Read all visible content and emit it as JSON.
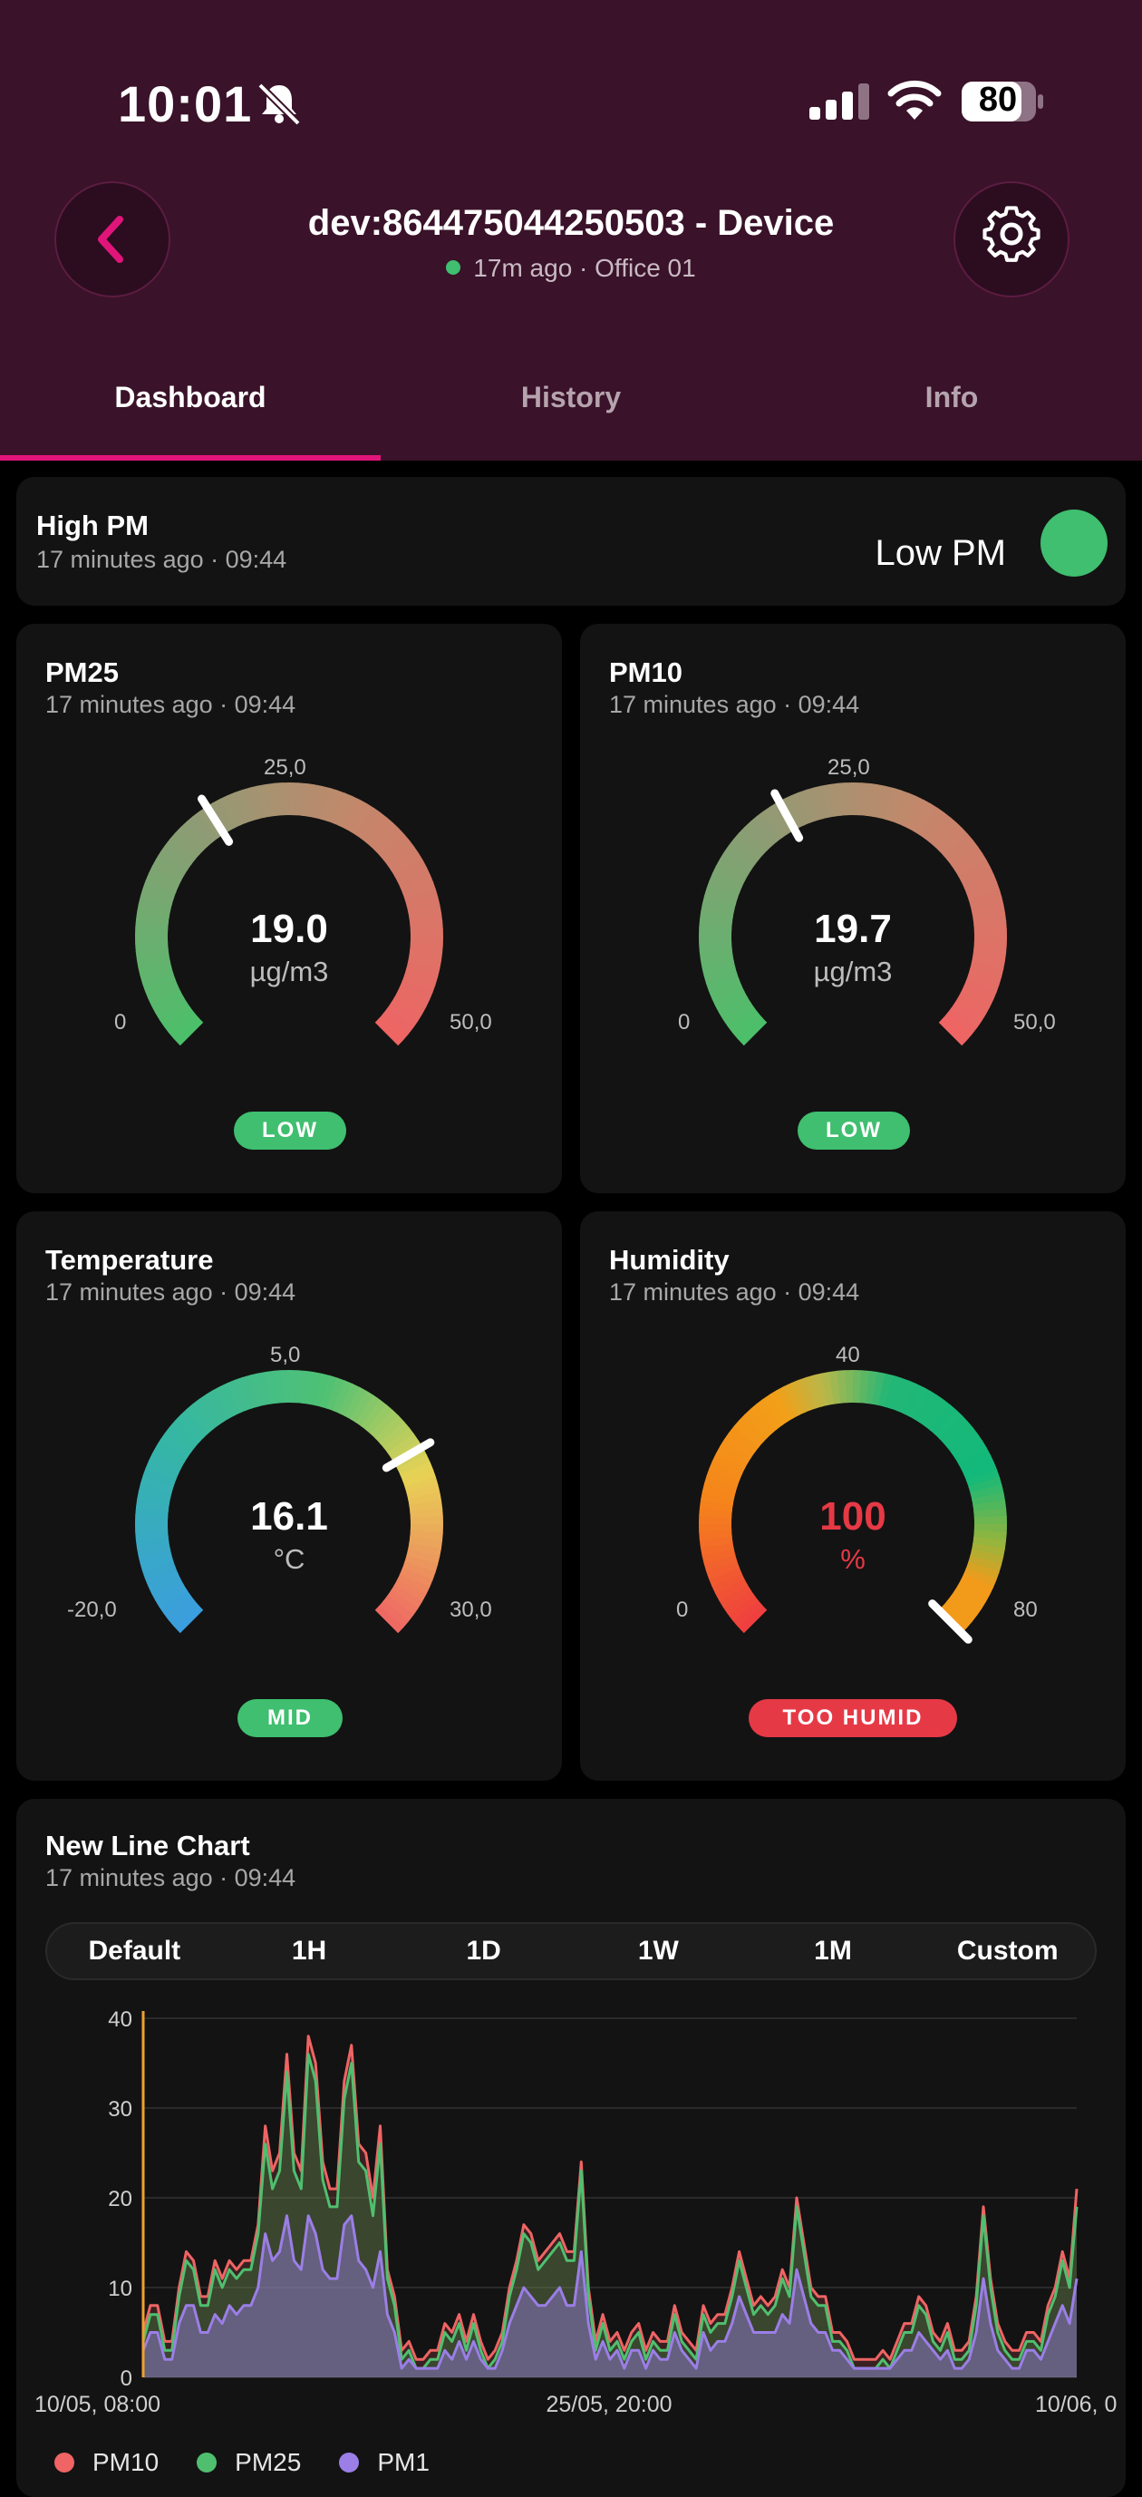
{
  "status_bar": {
    "time": "10:01",
    "battery": "80"
  },
  "header": {
    "device_title": "dev:864475044250503  - Device",
    "subtitle": "17m ago · Office 01"
  },
  "tabs": [
    {
      "label": "Dashboard",
      "active": true
    },
    {
      "label": "History",
      "active": false
    },
    {
      "label": "Info",
      "active": false
    }
  ],
  "alert_card": {
    "title": "High PM",
    "time": "17 minutes ago · 09:44",
    "state_label": "Low PM",
    "state_color": "#3fbf6f"
  },
  "gauges": [
    {
      "title": "PM25",
      "time": "17 minutes ago · 09:44",
      "value": "19.0",
      "unit": "µg/m3",
      "min_label": "0",
      "mid_label": "25,0",
      "max_label": "50,0",
      "fraction": 0.38,
      "status": "LOW",
      "status_color": "#3fbf6f",
      "value_color": "#ffffff"
    },
    {
      "title": "PM10",
      "time": "17 minutes ago · 09:44",
      "value": "19.7",
      "unit": "µg/m3",
      "min_label": "0",
      "mid_label": "25,0",
      "max_label": "50,0",
      "fraction": 0.394,
      "status": "LOW",
      "status_color": "#3fbf6f",
      "value_color": "#ffffff"
    },
    {
      "title": "Temperature",
      "time": "17 minutes ago · 09:44",
      "value": "16.1",
      "unit": "°C",
      "min_label": "-20,0",
      "mid_label": "5,0",
      "max_label": "30,0",
      "fraction": 0.722,
      "status": "MID",
      "status_color": "#3fbf6f",
      "value_color": "#ffffff"
    },
    {
      "title": "Humidity",
      "time": "17 minutes ago · 09:44",
      "value": "100",
      "unit": "%",
      "min_label": "0",
      "mid_label": "40",
      "max_label": "80",
      "fraction": 1.0,
      "status": "TOO HUMID",
      "status_color": "#e63946",
      "value_color": "#e63946"
    }
  ],
  "line_chart_card": {
    "title": "New Line Chart",
    "time": "17 minutes ago · 09:44",
    "ranges": [
      "Default",
      "1H",
      "1D",
      "1W",
      "1M",
      "Custom"
    ]
  },
  "chart_data": {
    "type": "area",
    "ylim": [
      0,
      40
    ],
    "yticks": [
      0,
      10,
      20,
      30,
      40
    ],
    "xtick_labels": [
      "10/05, 08:00",
      "25/05, 20:00",
      "10/06, 0"
    ],
    "grid": true,
    "legend_position": "bottom-left",
    "series": [
      {
        "name": "PM10",
        "color": "#ef6464",
        "values": [
          5,
          8,
          8,
          4,
          4,
          10,
          14,
          13,
          9,
          9,
          13,
          11,
          13,
          12,
          13,
          13,
          17,
          28,
          23,
          25,
          36,
          25,
          23,
          38,
          35,
          24,
          21,
          21,
          33,
          37,
          26,
          25,
          20,
          28,
          12,
          9,
          3,
          4,
          2,
          2,
          3,
          3,
          6,
          5,
          7,
          4,
          7,
          4,
          2,
          3,
          5,
          10,
          13,
          17,
          16,
          13,
          14,
          15,
          16,
          14,
          14,
          24,
          10,
          4,
          7,
          4,
          5,
          3,
          5,
          6,
          3,
          5,
          4,
          4,
          8,
          5,
          4,
          3,
          8,
          6,
          7,
          7,
          10,
          14,
          11,
          8,
          9,
          8,
          9,
          12,
          10,
          20,
          15,
          10,
          9,
          9,
          5,
          5,
          4,
          2,
          2,
          2,
          2,
          3,
          2,
          4,
          6,
          6,
          9,
          8,
          5,
          4,
          6,
          3,
          3,
          4,
          9,
          19,
          11,
          6,
          4,
          3,
          3,
          5,
          5,
          4,
          8,
          10,
          14,
          11,
          21
        ]
      },
      {
        "name": "PM25",
        "color": "#4fbf6f",
        "values": [
          4,
          7,
          7,
          3,
          3,
          9,
          13,
          12,
          8,
          8,
          12,
          10,
          12,
          11,
          12,
          12,
          16,
          26,
          21,
          23,
          34,
          23,
          21,
          36,
          33,
          22,
          19,
          19,
          31,
          35,
          24,
          23,
          18,
          26,
          11,
          8,
          2,
          3,
          1,
          1,
          2,
          2,
          5,
          4,
          6,
          3,
          6,
          3,
          1,
          2,
          4,
          9,
          12,
          16,
          15,
          12,
          13,
          14,
          15,
          13,
          13,
          23,
          9,
          3,
          6,
          3,
          4,
          2,
          4,
          5,
          2,
          4,
          3,
          3,
          7,
          4,
          3,
          2,
          7,
          5,
          6,
          6,
          9,
          13,
          10,
          7,
          8,
          7,
          8,
          11,
          9,
          19,
          14,
          9,
          8,
          8,
          4,
          4,
          3,
          1,
          1,
          1,
          1,
          2,
          1,
          3,
          5,
          5,
          8,
          7,
          4,
          3,
          5,
          2,
          2,
          3,
          8,
          18,
          10,
          5,
          3,
          2,
          2,
          4,
          4,
          3,
          7,
          9,
          13,
          10,
          19
        ]
      },
      {
        "name": "PM1",
        "color": "#9b7ee6",
        "values": [
          3,
          5,
          5,
          2,
          2,
          6,
          8,
          8,
          5,
          5,
          7,
          6,
          8,
          7,
          8,
          8,
          10,
          16,
          13,
          14,
          18,
          13,
          12,
          18,
          16,
          12,
          11,
          11,
          17,
          18,
          13,
          12,
          10,
          14,
          7,
          5,
          1,
          2,
          1,
          1,
          1,
          1,
          3,
          2,
          4,
          2,
          4,
          2,
          1,
          1,
          3,
          6,
          8,
          10,
          9,
          8,
          8,
          9,
          10,
          8,
          8,
          14,
          6,
          2,
          4,
          2,
          3,
          1,
          3,
          3,
          1,
          3,
          2,
          2,
          5,
          3,
          2,
          1,
          5,
          3,
          4,
          4,
          6,
          9,
          7,
          5,
          5,
          5,
          5,
          7,
          6,
          12,
          9,
          6,
          5,
          5,
          3,
          3,
          2,
          1,
          1,
          1,
          1,
          1,
          1,
          2,
          3,
          3,
          5,
          4,
          3,
          2,
          3,
          1,
          1,
          2,
          5,
          11,
          6,
          3,
          2,
          1,
          1,
          3,
          3,
          2,
          4,
          6,
          8,
          6,
          11
        ]
      }
    ]
  }
}
